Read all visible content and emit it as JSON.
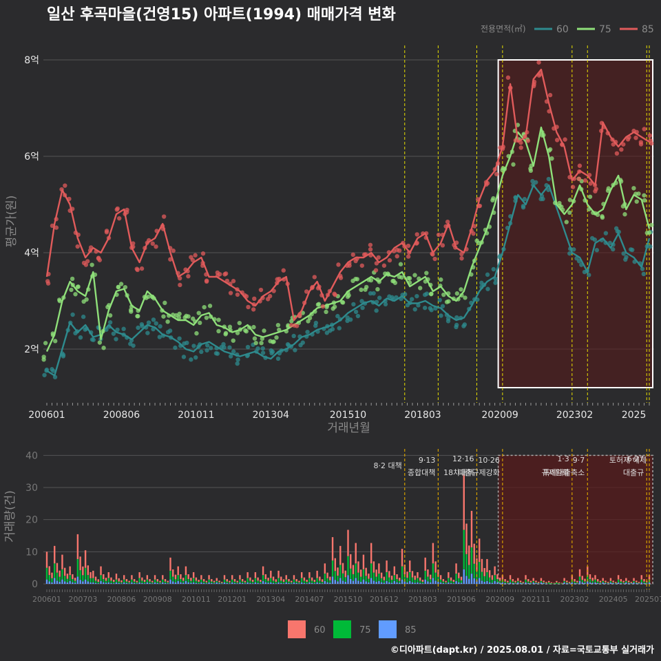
{
  "title": "일산 후곡마을(건영15) 아파트(1994) 매매가격 변화",
  "footer": "©디아파트(dapt.kr) / 2025.08.01 / 자료=국토교통부 실거래가",
  "colors": {
    "background": "#2b2b2d",
    "grid": "#555555",
    "text": "#e8e8e8",
    "muted": "#8a8a8a",
    "s60": "#2e8b8e",
    "s75": "#8fe07a",
    "s85": "#e15b5b",
    "bar60": "#f8766d",
    "bar75": "#00ba38",
    "bar85": "#619cff",
    "policy_line": "#e8e000",
    "highlight_fill": "#5a1a1a",
    "highlight_border": "#ffffff"
  },
  "chart_data": [
    {
      "type": "line",
      "title": "일산 후곡마을(건영15) 아파트(1994) 매매가격 변화",
      "xlabel": "거래년월",
      "ylabel": "평균가(원)",
      "legend_title": "전용면적(㎡)",
      "legend_position": "top-right",
      "grid": true,
      "x_ticks": [
        "200601",
        "200806",
        "201011",
        "201304",
        "201510",
        "201803",
        "202009",
        "202302",
        "2025"
      ],
      "y_ticks": [
        "2억",
        "4억",
        "6억",
        "8억"
      ],
      "ylim": [
        1.0,
        8.3
      ],
      "y_unit": "억",
      "highlight_range": [
        "202011",
        "202507"
      ],
      "policy_lines": [
        "201708",
        "201809",
        "201912",
        "202010",
        "202301",
        "202307",
        "202506",
        "202507"
      ],
      "series": [
        {
          "name": "60",
          "x": [
            "2006-01",
            "2006-04",
            "2006-07",
            "2006-10",
            "2007-01",
            "2007-04",
            "2007-07",
            "2007-10",
            "2008-01",
            "2008-04",
            "2008-07",
            "2008-10",
            "2009-01",
            "2009-04",
            "2009-07",
            "2009-10",
            "2010-01",
            "2010-04",
            "2010-07",
            "2010-10",
            "2011-01",
            "2011-04",
            "2011-07",
            "2011-10",
            "2012-01",
            "2012-04",
            "2012-07",
            "2012-10",
            "2013-01",
            "2013-04",
            "2013-07",
            "2013-10",
            "2014-01",
            "2014-04",
            "2014-07",
            "2014-10",
            "2015-01",
            "2015-04",
            "2015-07",
            "2015-10",
            "2016-01",
            "2016-04",
            "2016-07",
            "2016-10",
            "2017-01",
            "2017-04",
            "2017-07",
            "2017-10",
            "2018-01",
            "2018-04",
            "2018-07",
            "2018-10",
            "2019-01",
            "2019-04",
            "2019-07",
            "2019-10",
            "2020-01",
            "2020-04",
            "2020-07",
            "2020-10",
            "2021-01",
            "2021-04",
            "2021-07",
            "2021-10",
            "2022-01",
            "2022-04",
            "2023-01",
            "2023-04",
            "2023-07",
            "2023-10",
            "2024-01",
            "2024-04",
            "2024-07",
            "2024-10",
            "2025-01",
            "2025-04",
            "2025-07"
          ],
          "values": [
            1.55,
            1.45,
            2.0,
            2.55,
            2.35,
            2.5,
            2.25,
            2.3,
            2.5,
            2.35,
            2.3,
            2.2,
            2.35,
            2.5,
            2.45,
            2.3,
            2.25,
            2.15,
            2.0,
            1.95,
            2.1,
            2.15,
            2.05,
            1.95,
            1.9,
            1.85,
            1.9,
            1.95,
            1.85,
            1.8,
            1.95,
            2.0,
            2.1,
            2.25,
            2.3,
            2.4,
            2.45,
            2.5,
            2.6,
            2.75,
            2.85,
            2.95,
            3.0,
            2.9,
            3.05,
            3.0,
            3.1,
            2.95,
            2.95,
            3.0,
            2.9,
            2.85,
            2.7,
            2.6,
            2.65,
            2.9,
            3.2,
            3.4,
            3.5,
            4.0,
            4.6,
            5.2,
            5.0,
            5.4,
            5.2,
            5.4,
            4.0,
            3.9,
            3.6,
            4.2,
            4.3,
            4.1,
            4.4,
            4.0,
            3.9,
            3.7,
            4.3
          ]
        },
        {
          "name": "75",
          "x": [
            "2006-01",
            "2006-04",
            "2006-07",
            "2006-10",
            "2007-01",
            "2007-04",
            "2007-07",
            "2007-10",
            "2008-01",
            "2008-04",
            "2008-07",
            "2008-10",
            "2009-01",
            "2009-04",
            "2009-07",
            "2009-10",
            "2010-01",
            "2010-04",
            "2010-07",
            "2010-10",
            "2011-01",
            "2011-04",
            "2011-07",
            "2011-10",
            "2012-01",
            "2012-04",
            "2012-07",
            "2012-10",
            "2013-01",
            "2013-04",
            "2013-07",
            "2013-10",
            "2014-01",
            "2014-04",
            "2014-07",
            "2014-10",
            "2015-01",
            "2015-04",
            "2015-07",
            "2015-10",
            "2016-01",
            "2016-04",
            "2016-07",
            "2016-10",
            "2017-01",
            "2017-04",
            "2017-07",
            "2017-10",
            "2018-01",
            "2018-04",
            "2018-07",
            "2018-10",
            "2019-01",
            "2019-04",
            "2019-07",
            "2019-10",
            "2020-01",
            "2020-04",
            "2020-07",
            "2020-10",
            "2021-01",
            "2021-04",
            "2021-07",
            "2021-10",
            "2022-01",
            "2022-04",
            "2022-07",
            "2022-10",
            "2023-01",
            "2023-04",
            "2023-07",
            "2023-10",
            "2024-01",
            "2024-04",
            "2024-07",
            "2024-10",
            "2025-01",
            "2025-04",
            "2025-07"
          ],
          "values": [
            1.95,
            2.3,
            3.0,
            3.4,
            3.2,
            3.1,
            3.6,
            2.2,
            2.8,
            3.2,
            3.25,
            2.9,
            2.8,
            3.2,
            3.05,
            2.8,
            2.7,
            2.6,
            2.6,
            2.5,
            2.7,
            2.75,
            2.5,
            2.45,
            2.35,
            2.4,
            2.5,
            2.3,
            2.25,
            2.3,
            2.35,
            2.4,
            2.5,
            2.6,
            2.7,
            2.85,
            2.9,
            2.95,
            3.0,
            3.2,
            3.3,
            3.4,
            3.5,
            3.4,
            3.55,
            3.5,
            3.6,
            3.3,
            3.4,
            3.5,
            3.2,
            3.3,
            3.1,
            3.0,
            3.2,
            3.7,
            4.1,
            4.5,
            5.0,
            5.6,
            6.0,
            6.5,
            6.3,
            5.8,
            6.6,
            6.0,
            5.0,
            4.8,
            5.0,
            5.4,
            5.0,
            4.8,
            4.9,
            5.3,
            5.6,
            4.9,
            5.2,
            5.1,
            4.5
          ]
        },
        {
          "name": "85",
          "x": [
            "2006-01",
            "2006-04",
            "2006-07",
            "2006-10",
            "2007-01",
            "2007-04",
            "2007-07",
            "2007-10",
            "2008-01",
            "2008-04",
            "2008-07",
            "2008-10",
            "2009-01",
            "2009-04",
            "2009-07",
            "2009-10",
            "2010-01",
            "2010-04",
            "2010-07",
            "2010-10",
            "2011-01",
            "2011-04",
            "2011-07",
            "2011-10",
            "2012-01",
            "2012-04",
            "2012-07",
            "2012-10",
            "2013-01",
            "2013-04",
            "2013-07",
            "2013-10",
            "2014-01",
            "2014-04",
            "2014-07",
            "2014-10",
            "2015-01",
            "2015-04",
            "2015-07",
            "2015-10",
            "2016-01",
            "2016-04",
            "2016-07",
            "2016-10",
            "2017-01",
            "2017-04",
            "2017-07",
            "2017-10",
            "2018-01",
            "2018-04",
            "2018-07",
            "2018-10",
            "2019-01",
            "2019-04",
            "2019-07",
            "2019-10",
            "2020-01",
            "2020-04",
            "2020-07",
            "2020-10",
            "2021-01",
            "2021-04",
            "2021-07",
            "2021-10",
            "2022-01",
            "2022-04",
            "2022-07",
            "2022-10",
            "2023-01",
            "2023-04",
            "2023-07",
            "2023-10",
            "2024-01",
            "2024-04",
            "2024-07",
            "2024-10",
            "2025-01",
            "2025-04",
            "2025-07"
          ],
          "values": [
            3.5,
            4.6,
            5.3,
            5.0,
            4.3,
            3.9,
            4.1,
            4.0,
            4.3,
            4.8,
            4.9,
            4.1,
            3.8,
            4.2,
            4.3,
            4.6,
            4.0,
            3.5,
            3.6,
            3.8,
            3.9,
            3.5,
            3.5,
            3.4,
            3.3,
            3.2,
            3.0,
            2.9,
            3.1,
            3.2,
            3.4,
            3.5,
            2.6,
            2.8,
            3.2,
            3.4,
            3.0,
            3.3,
            3.6,
            3.8,
            3.9,
            3.9,
            4.0,
            3.8,
            3.9,
            4.1,
            4.2,
            4.0,
            4.3,
            4.4,
            4.0,
            4.2,
            4.6,
            4.1,
            4.0,
            4.5,
            5.1,
            5.5,
            5.7,
            6.2,
            7.5,
            6.3,
            6.4,
            7.6,
            7.8,
            7.1,
            6.5,
            6.2,
            5.5,
            5.7,
            5.6,
            5.4,
            6.7,
            6.4,
            6.2,
            6.4,
            6.5,
            6.4,
            6.3
          ]
        }
      ]
    },
    {
      "type": "bar",
      "stacked": true,
      "ylabel": "거래량(건)",
      "legend_position": "bottom",
      "grid": true,
      "x_ticks": [
        "200601",
        "200703",
        "200806",
        "200908",
        "201011",
        "201201",
        "201304",
        "201407",
        "201510",
        "201612",
        "201803",
        "201906",
        "202009",
        "202111",
        "202302",
        "202405",
        "202507"
      ],
      "y_ticks": [
        "0",
        "10",
        "20",
        "30",
        "40"
      ],
      "ylim": [
        0,
        42
      ],
      "highlight_range": [
        "202011",
        "202507"
      ],
      "annotations": [
        {
          "date": "201708",
          "label": "8·2 대책"
        },
        {
          "date": "201809",
          "label": "9·13",
          "sub": "종합대책"
        },
        {
          "date": "201912",
          "label": "12·16",
          "sub": "18차대책"
        },
        {
          "date": "202010",
          "label": "10·26",
          "sub": "대출규제강화"
        },
        {
          "date": "202301",
          "label": "1·3",
          "sub": "규제완화"
        },
        {
          "date": "202307",
          "label": "9·7",
          "sub": "특례대출축소"
        },
        {
          "date": "202506",
          "label": "6·27",
          "sub": "대출규"
        },
        {
          "date": "202507",
          "label": "토허제 해제"
        }
      ],
      "series": [
        {
          "name": "60",
          "monthly_total_estimate": [
            11,
            12,
            10,
            6,
            17,
            12,
            5,
            6,
            4,
            4,
            3,
            3,
            4,
            3,
            3,
            3,
            9,
            6,
            6,
            4,
            3,
            3,
            2,
            3,
            3,
            3,
            4,
            4,
            6,
            5,
            5,
            3,
            3,
            4,
            4,
            5,
            7,
            16,
            13,
            18,
            14,
            10,
            14,
            7,
            8,
            6,
            12,
            8,
            4,
            9,
            14,
            3,
            4,
            7,
            38,
            25,
            16,
            9,
            6,
            3,
            3,
            2,
            3,
            2,
            2,
            1,
            1,
            2,
            3,
            5,
            6,
            3,
            2,
            2,
            3,
            2,
            2,
            3,
            3
          ]
        },
        {
          "name": "75",
          "monthly_total_estimate": [
            8,
            10,
            7,
            4,
            12,
            8,
            3,
            4,
            3,
            2,
            2,
            2,
            3,
            2,
            2,
            2,
            6,
            4,
            4,
            3,
            2,
            2,
            1,
            2,
            2,
            2,
            3,
            3,
            4,
            3,
            3,
            2,
            2,
            3,
            3,
            3,
            5,
            11,
            9,
            13,
            10,
            7,
            10,
            5,
            6,
            4,
            9,
            6,
            3,
            6,
            10,
            2,
            3,
            5,
            27,
            18,
            11,
            6,
            4,
            2,
            2,
            1,
            2,
            1,
            1,
            1,
            1,
            1,
            2,
            3,
            4,
            2,
            1,
            1,
            2,
            1,
            1,
            2,
            2
          ]
        },
        {
          "name": "85",
          "monthly_total_estimate": [
            3,
            4,
            3,
            2,
            5,
            3,
            1,
            2,
            1,
            1,
            1,
            1,
            1,
            1,
            1,
            1,
            3,
            2,
            2,
            1,
            1,
            1,
            1,
            1,
            1,
            1,
            1,
            1,
            2,
            1,
            1,
            1,
            1,
            1,
            1,
            1,
            2,
            5,
            4,
            6,
            4,
            3,
            4,
            2,
            2,
            2,
            3,
            2,
            1,
            3,
            4,
            1,
            1,
            2,
            10,
            7,
            4,
            2,
            2,
            1,
            1,
            1,
            1,
            1,
            1,
            0,
            0,
            1,
            1,
            2,
            2,
            1,
            1,
            1,
            1,
            1,
            1,
            1,
            1
          ]
        }
      ]
    }
  ]
}
